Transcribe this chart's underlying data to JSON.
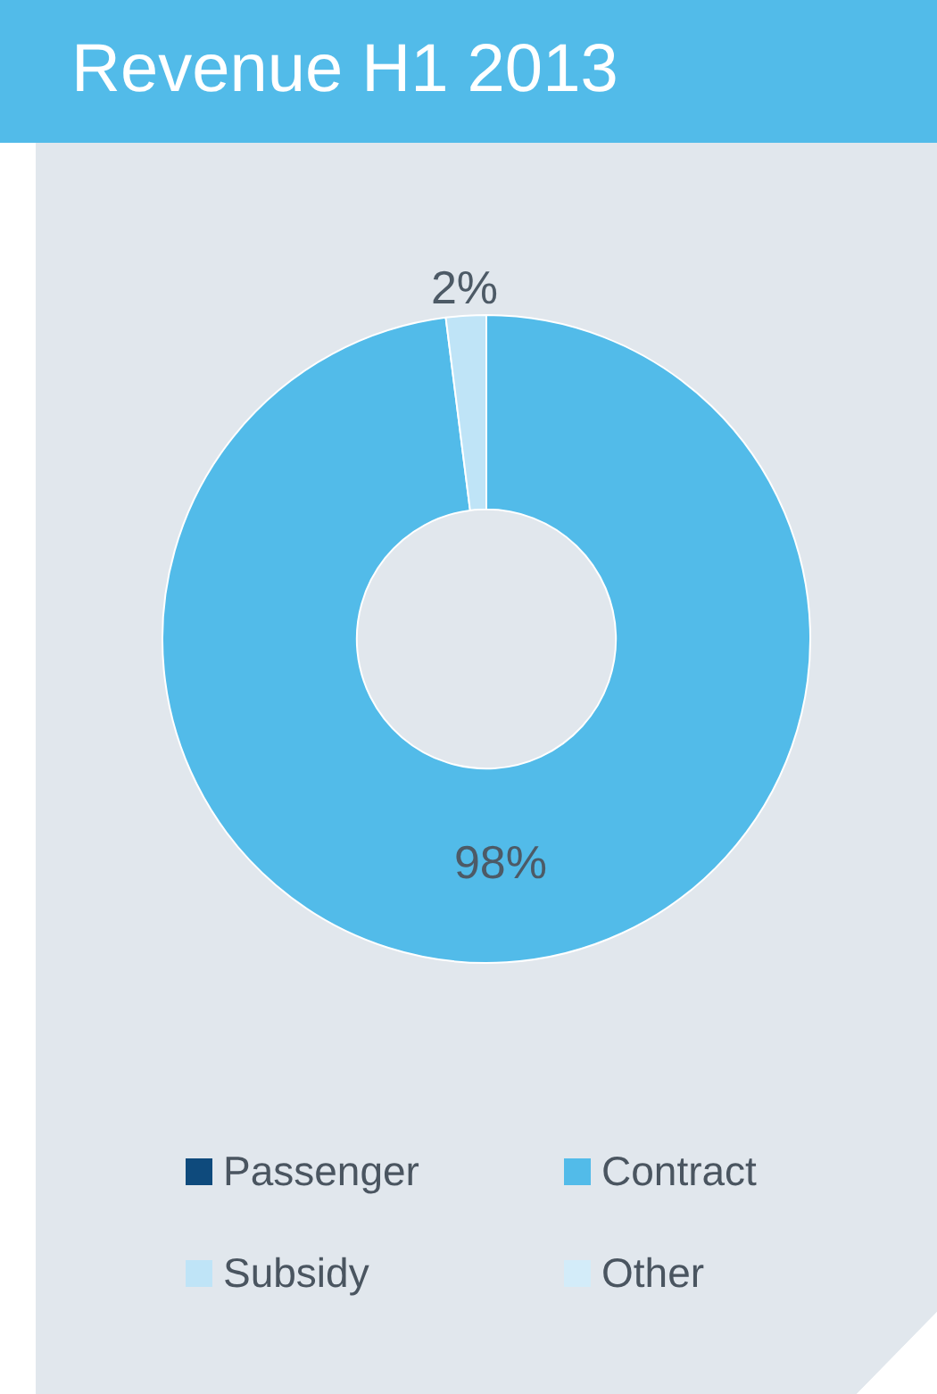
{
  "chart_data": {
    "type": "donut",
    "title": "Revenue H1 2013",
    "categories": [
      "Passenger",
      "Contract",
      "Subsidy",
      "Other"
    ],
    "values": [
      0,
      98,
      2,
      0
    ],
    "colors": [
      "#0e4a7c",
      "#52bbe9",
      "#bfe4f7",
      "#d3ecf9"
    ],
    "value_labels": [
      null,
      "98%",
      "2%",
      null
    ],
    "legend": "bottom"
  }
}
